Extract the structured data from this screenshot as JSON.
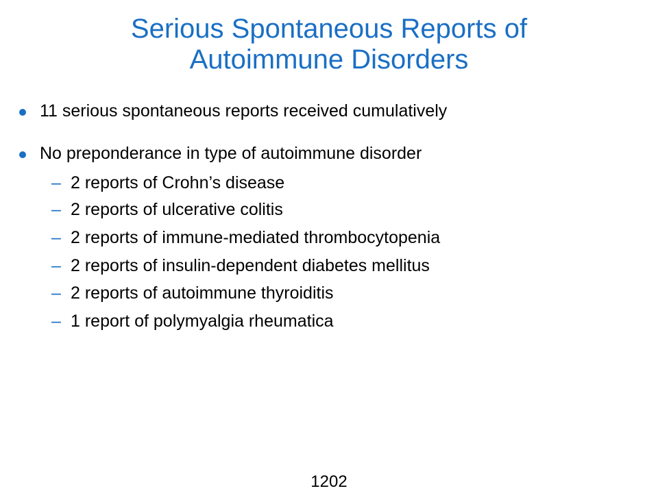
{
  "slide": {
    "title_lines": [
      "Serious Spontaneous Reports of",
      "Autoimmune Disorders"
    ],
    "bullets": [
      {
        "text": "11 serious spontaneous reports received cumulatively",
        "subitems": []
      },
      {
        "text": "No preponderance in type of autoimmune disorder",
        "subitems": [
          "2 reports of Crohn’s disease",
          "2 reports of ulcerative colitis",
          "2 reports of immune-mediated thrombocytopenia",
          "2 reports of insulin-dependent diabetes mellitus",
          "2 reports of autoimmune thyroiditis",
          "1 report of polymyalgia rheumatica"
        ]
      }
    ],
    "dash_glyph": "–",
    "page_number": "1202"
  },
  "colors": {
    "accent": "#1a6fc4",
    "text": "#000000",
    "background": "#ffffff"
  }
}
